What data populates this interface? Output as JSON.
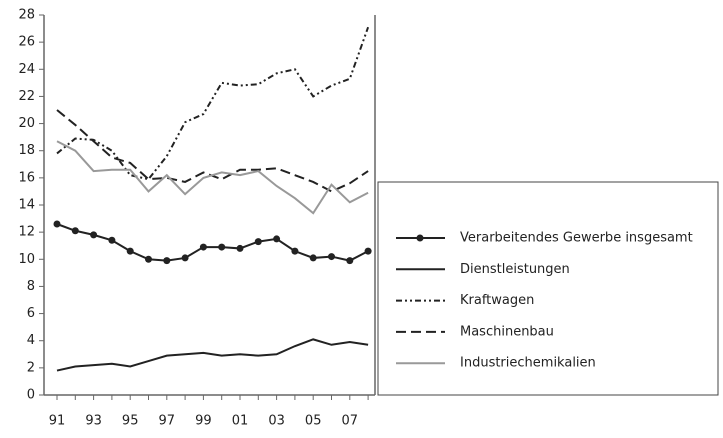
{
  "chart_data": {
    "type": "line",
    "categories": [
      "91",
      null,
      "93",
      null,
      "95",
      null,
      "97",
      null,
      "99",
      null,
      "01",
      null,
      "03",
      null,
      "05",
      null,
      "07",
      null
    ],
    "ylim": [
      0,
      28
    ],
    "yticks": [
      0,
      2,
      4,
      6,
      8,
      10,
      12,
      14,
      16,
      18,
      20,
      22,
      24,
      26,
      28
    ],
    "series": [
      {
        "name": "Verarbeitendes Gewerbe insgesamt",
        "color": "#222222",
        "dash": "solid",
        "marker": "circle",
        "values": [
          12.6,
          12.1,
          11.8,
          11.4,
          10.6,
          10.0,
          9.9,
          10.1,
          10.9,
          10.9,
          10.8,
          11.3,
          11.5,
          10.6,
          10.1,
          10.2,
          9.9,
          10.6
        ]
      },
      {
        "name": "Dienstleistungen",
        "color": "#222222",
        "dash": "solid",
        "values": [
          1.8,
          2.1,
          2.2,
          2.3,
          2.1,
          2.5,
          2.9,
          3.0,
          3.1,
          2.9,
          3.0,
          2.9,
          3.0,
          3.6,
          4.1,
          3.7,
          3.9,
          3.7
        ]
      },
      {
        "name": "Kraftwagen",
        "color": "#222222",
        "dash": "dash-dot-dot",
        "values": [
          17.8,
          18.9,
          18.8,
          18.0,
          16.2,
          15.9,
          17.6,
          20.1,
          20.7,
          23.0,
          22.8,
          22.9,
          23.7,
          24.0,
          22.0,
          22.8,
          23.3,
          27.1
        ]
      },
      {
        "name": "Maschinenbau",
        "color": "#222222",
        "dash": "dash",
        "values": [
          21.0,
          19.9,
          18.7,
          17.5,
          17.1,
          15.9,
          16.0,
          15.7,
          16.4,
          15.9,
          16.6,
          16.6,
          16.7,
          16.2,
          15.7,
          15.0,
          15.6,
          16.5
        ]
      },
      {
        "name": "Industriechemikalien",
        "color": "#999999",
        "dash": "solid",
        "values": [
          18.7,
          18.0,
          16.5,
          16.6,
          16.6,
          15.0,
          16.2,
          14.8,
          16.0,
          16.4,
          16.2,
          16.5,
          15.4,
          14.5,
          13.4,
          15.5,
          14.2,
          14.9
        ]
      }
    ]
  }
}
